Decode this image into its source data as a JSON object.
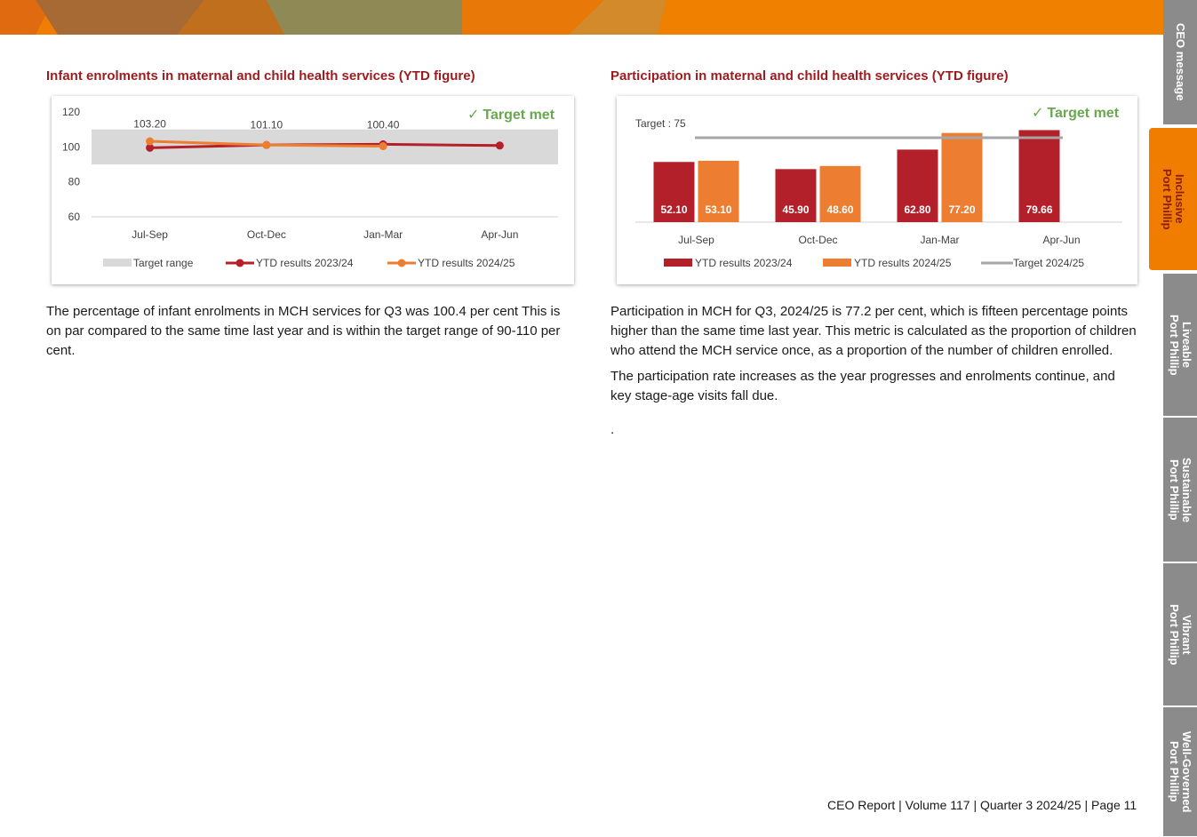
{
  "colors": {
    "brand_orange": "#f07d00",
    "heading_red": "#9b1c1f",
    "series_2023": "#b3202a",
    "series_2024": "#ed7d31",
    "target_range": "#d9d9d9",
    "target_line": "#a6a6a6",
    "target_met_green": "#6aa84f",
    "tab_grey": "#8b8b8b"
  },
  "side_tabs": [
    {
      "label": "CEO message",
      "active": false
    },
    {
      "label": "Inclusive\nPort Phillip",
      "active": true
    },
    {
      "label": "Liveable\nPort Phillip",
      "active": false
    },
    {
      "label": "Sustainable\nPort Phillip",
      "active": false
    },
    {
      "label": "Vibrant\nPort Phillip",
      "active": false
    },
    {
      "label": "Well-Governed\nPort Phillip",
      "active": false
    }
  ],
  "left": {
    "heading": "Infant enrolments in maternal and child health services (YTD figure)",
    "target_met": "Target met",
    "paragraphs": [
      "The percentage of infant enrolments in MCH services for Q3 was 100.4 per cent This is on par compared to the same time last year and is within the target range of 90-110 per cent."
    ]
  },
  "right": {
    "heading": "Participation in maternal and child health services (YTD figure)",
    "target_met": "Target met",
    "target_label": "Target : 75",
    "paragraphs": [
      "Participation in MCH for Q3, 2024/25 is 77.2 per cent, which is fifteen percentage points higher than the same time last year. This metric is calculated as the proportion of children who attend the MCH service once, as a proportion of the number of children enrolled.",
      "The participation rate increases as the year progresses and enrolments continue, and key stage-age visits fall due.",
      "."
    ]
  },
  "footer": "CEO Report | Volume 117  | Quarter 3 2024/25 | Page 11",
  "chart_data": [
    {
      "type": "line",
      "title": "Infant enrolments in maternal and child health services (YTD figure)",
      "categories": [
        "Jul-Sep",
        "Oct-Dec",
        "Jan-Mar",
        "Apr-Jun"
      ],
      "series": [
        {
          "name": "YTD results 2023/24",
          "values": [
            99.5,
            101.1,
            101.5,
            100.8
          ]
        },
        {
          "name": "YTD results 2024/25",
          "values": [
            103.2,
            101.1,
            100.4,
            null
          ]
        }
      ],
      "data_labels": [
        "103.20",
        "101.10",
        "100.40"
      ],
      "target_range": {
        "name": "Target range",
        "min": 90,
        "max": 110
      },
      "ylim": [
        60,
        120
      ],
      "yticks": [
        "120",
        "100",
        "80",
        "60"
      ],
      "legend": [
        "Target range",
        "YTD results 2023/24",
        "YTD results 2024/25"
      ],
      "legend_position": "bottom"
    },
    {
      "type": "bar",
      "title": "Participation in maternal and child health services (YTD figure)",
      "categories": [
        "Jul-Sep",
        "Oct-Dec",
        "Jan-Mar",
        "Apr-Jun"
      ],
      "series": [
        {
          "name": "YTD results 2023/24",
          "values": [
            52.1,
            45.9,
            62.8,
            79.66
          ],
          "labels": [
            "52.10",
            "45.90",
            "62.80",
            "79.66"
          ]
        },
        {
          "name": "YTD results 2024/25",
          "values": [
            53.1,
            48.6,
            77.2,
            null
          ],
          "labels": [
            "53.10",
            "48.60",
            "77.20",
            ""
          ]
        }
      ],
      "target": {
        "name": "Target 2024/25",
        "value": 75
      },
      "ylim": [
        0,
        80
      ],
      "legend": [
        "YTD results 2023/24",
        "YTD results 2024/25",
        "Target 2024/25"
      ],
      "legend_position": "bottom"
    }
  ]
}
